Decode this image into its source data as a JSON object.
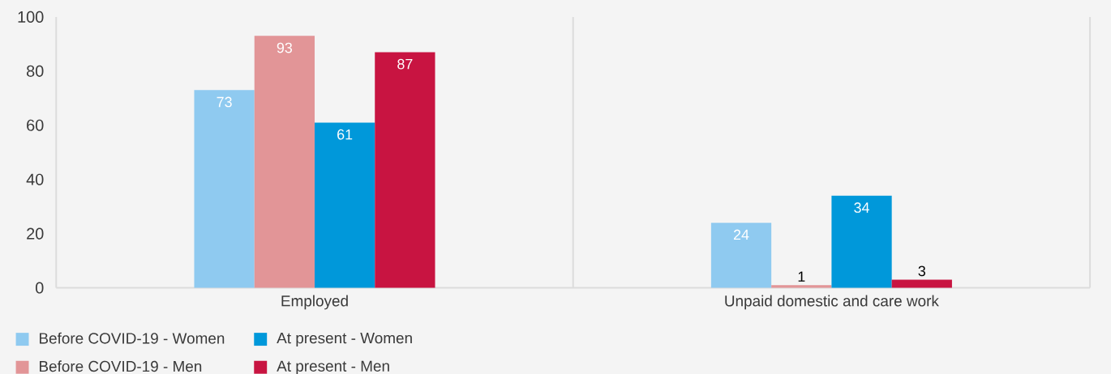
{
  "chart_data": {
    "type": "bar",
    "categories": [
      "Employed",
      "Unpaid domestic and care work"
    ],
    "series": [
      {
        "name": "Before COVID-19 - Women",
        "color": "#8fcaf0",
        "values": [
          73,
          24
        ]
      },
      {
        "name": "Before COVID-19 - Men",
        "color": "#e29597",
        "values": [
          93,
          1
        ]
      },
      {
        "name": "At present - Women",
        "color": "#0098da",
        "values": [
          61,
          34
        ]
      },
      {
        "name": "At present - Men",
        "color": "#c81441",
        "values": [
          87,
          3
        ]
      }
    ],
    "ylim": [
      0,
      100
    ],
    "yticks": [
      0,
      20,
      40,
      60,
      80,
      100
    ],
    "grid": "x",
    "legend": "bottom left",
    "data_labels": true
  }
}
